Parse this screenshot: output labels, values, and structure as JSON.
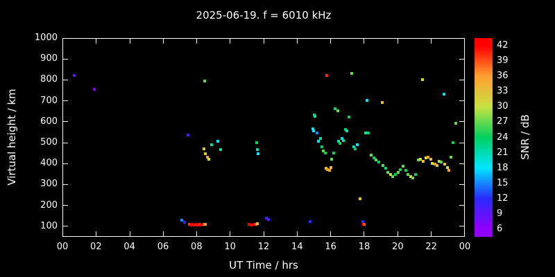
{
  "header": {
    "title": "2025-06-19. f = 6010 kHz"
  },
  "chart_data": {
    "type": "scatter",
    "title": "2025-06-19. f = 6010 kHz",
    "xlabel": "UT Time / hrs",
    "ylabel": "Virtual height / km",
    "xlim": [
      0,
      24
    ],
    "ylim": [
      50,
      1000
    ],
    "grid": false,
    "background_color": "#000000",
    "axis_color": "#ffffff",
    "x_tick_hours": [
      0,
      2,
      4,
      6,
      8,
      10,
      12,
      14,
      16,
      18,
      20,
      22,
      24
    ],
    "x_tick_labels": [
      "00",
      "02",
      "04",
      "06",
      "08",
      "10",
      "12",
      "14",
      "16",
      "18",
      "20",
      "22",
      "00"
    ],
    "y_ticks": [
      100,
      200,
      300,
      400,
      500,
      600,
      700,
      800,
      900,
      1000
    ],
    "colorbar": {
      "label": "SNR / dB",
      "ticks": [
        6,
        9,
        12,
        15,
        18,
        21,
        24,
        27,
        30,
        33,
        36,
        39,
        42
      ],
      "range": [
        4.5,
        43.5
      ],
      "stops": [
        {
          "value": 6,
          "color": "#9000ff"
        },
        {
          "value": 12,
          "color": "#2a2aff"
        },
        {
          "value": 18,
          "color": "#00e5ff"
        },
        {
          "value": 24,
          "color": "#00d060"
        },
        {
          "value": 30,
          "color": "#c8e040"
        },
        {
          "value": 36,
          "color": "#ffa030"
        },
        {
          "value": 42,
          "color": "#ff0000"
        }
      ]
    },
    "points": [
      [
        0.7,
        820,
        9
      ],
      [
        1.9,
        755,
        7
      ],
      [
        7.15,
        125,
        15
      ],
      [
        7.3,
        115,
        12
      ],
      [
        7.5,
        535,
        9
      ],
      [
        7.6,
        105,
        40
      ],
      [
        7.7,
        103,
        42
      ],
      [
        7.8,
        105,
        42
      ],
      [
        7.9,
        104,
        42
      ],
      [
        8.0,
        105,
        42
      ],
      [
        8.1,
        103,
        42
      ],
      [
        8.2,
        105,
        40
      ],
      [
        8.3,
        104,
        42
      ],
      [
        8.45,
        105,
        39
      ],
      [
        8.55,
        106,
        36
      ],
      [
        8.5,
        795,
        27
      ],
      [
        8.45,
        470,
        33
      ],
      [
        8.55,
        445,
        33
      ],
      [
        8.65,
        430,
        36
      ],
      [
        8.75,
        420,
        30
      ],
      [
        8.9,
        490,
        21
      ],
      [
        9.3,
        505,
        18
      ],
      [
        9.45,
        465,
        21
      ],
      [
        11.15,
        105,
        42
      ],
      [
        11.3,
        104,
        42
      ],
      [
        11.45,
        105,
        42
      ],
      [
        11.55,
        107,
        39
      ],
      [
        11.65,
        110,
        33
      ],
      [
        11.6,
        500,
        24
      ],
      [
        11.65,
        465,
        21
      ],
      [
        11.7,
        445,
        18
      ],
      [
        12.2,
        135,
        12
      ],
      [
        12.3,
        130,
        9
      ],
      [
        14.8,
        120,
        12
      ],
      [
        14.95,
        565,
        18
      ],
      [
        15.0,
        555,
        18
      ],
      [
        15.05,
        630,
        24
      ],
      [
        15.1,
        625,
        21
      ],
      [
        15.2,
        545,
        15
      ],
      [
        15.3,
        505,
        18
      ],
      [
        15.4,
        520,
        21
      ],
      [
        15.5,
        480,
        24
      ],
      [
        15.8,
        820,
        40
      ],
      [
        15.6,
        460,
        27
      ],
      [
        15.7,
        450,
        24
      ],
      [
        15.75,
        375,
        33
      ],
      [
        15.85,
        370,
        36
      ],
      [
        15.95,
        365,
        36
      ],
      [
        16.05,
        380,
        33
      ],
      [
        16.1,
        420,
        27
      ],
      [
        16.2,
        450,
        24
      ],
      [
        16.3,
        660,
        24
      ],
      [
        16.45,
        650,
        27
      ],
      [
        16.5,
        505,
        21
      ],
      [
        16.6,
        495,
        24
      ],
      [
        16.7,
        520,
        18
      ],
      [
        16.8,
        510,
        21
      ],
      [
        16.9,
        560,
        24
      ],
      [
        17.0,
        555,
        21
      ],
      [
        17.1,
        620,
        24
      ],
      [
        17.3,
        830,
        27
      ],
      [
        17.4,
        480,
        21
      ],
      [
        17.5,
        470,
        24
      ],
      [
        17.6,
        490,
        18
      ],
      [
        17.8,
        230,
        33
      ],
      [
        17.95,
        120,
        12
      ],
      [
        18.0,
        105,
        42
      ],
      [
        18.05,
        108,
        39
      ],
      [
        18.1,
        545,
        21
      ],
      [
        18.2,
        700,
        18
      ],
      [
        18.3,
        545,
        24
      ],
      [
        18.45,
        440,
        27
      ],
      [
        18.6,
        425,
        24
      ],
      [
        18.75,
        415,
        27
      ],
      [
        18.9,
        405,
        24
      ],
      [
        19.1,
        690,
        33
      ],
      [
        19.15,
        390,
        27
      ],
      [
        19.3,
        375,
        24
      ],
      [
        19.45,
        355,
        27
      ],
      [
        19.6,
        345,
        30
      ],
      [
        19.75,
        335,
        27
      ],
      [
        19.9,
        345,
        24
      ],
      [
        20.05,
        355,
        27
      ],
      [
        20.2,
        370,
        24
      ],
      [
        20.35,
        385,
        27
      ],
      [
        20.5,
        365,
        24
      ],
      [
        20.65,
        345,
        27
      ],
      [
        20.8,
        335,
        30
      ],
      [
        20.95,
        330,
        27
      ],
      [
        21.1,
        345,
        24
      ],
      [
        21.25,
        415,
        27
      ],
      [
        21.4,
        420,
        30
      ],
      [
        21.5,
        800,
        30
      ],
      [
        21.55,
        410,
        33
      ],
      [
        21.7,
        425,
        30
      ],
      [
        21.85,
        430,
        36
      ],
      [
        22.0,
        420,
        33
      ],
      [
        22.1,
        400,
        30
      ],
      [
        22.25,
        395,
        36
      ],
      [
        22.4,
        390,
        33
      ],
      [
        22.5,
        410,
        30
      ],
      [
        22.65,
        405,
        27
      ],
      [
        22.8,
        730,
        18
      ],
      [
        22.85,
        395,
        33
      ],
      [
        23.0,
        380,
        30
      ],
      [
        23.1,
        365,
        36
      ],
      [
        23.2,
        430,
        27
      ],
      [
        23.35,
        500,
        24
      ],
      [
        23.5,
        590,
        27
      ]
    ]
  }
}
